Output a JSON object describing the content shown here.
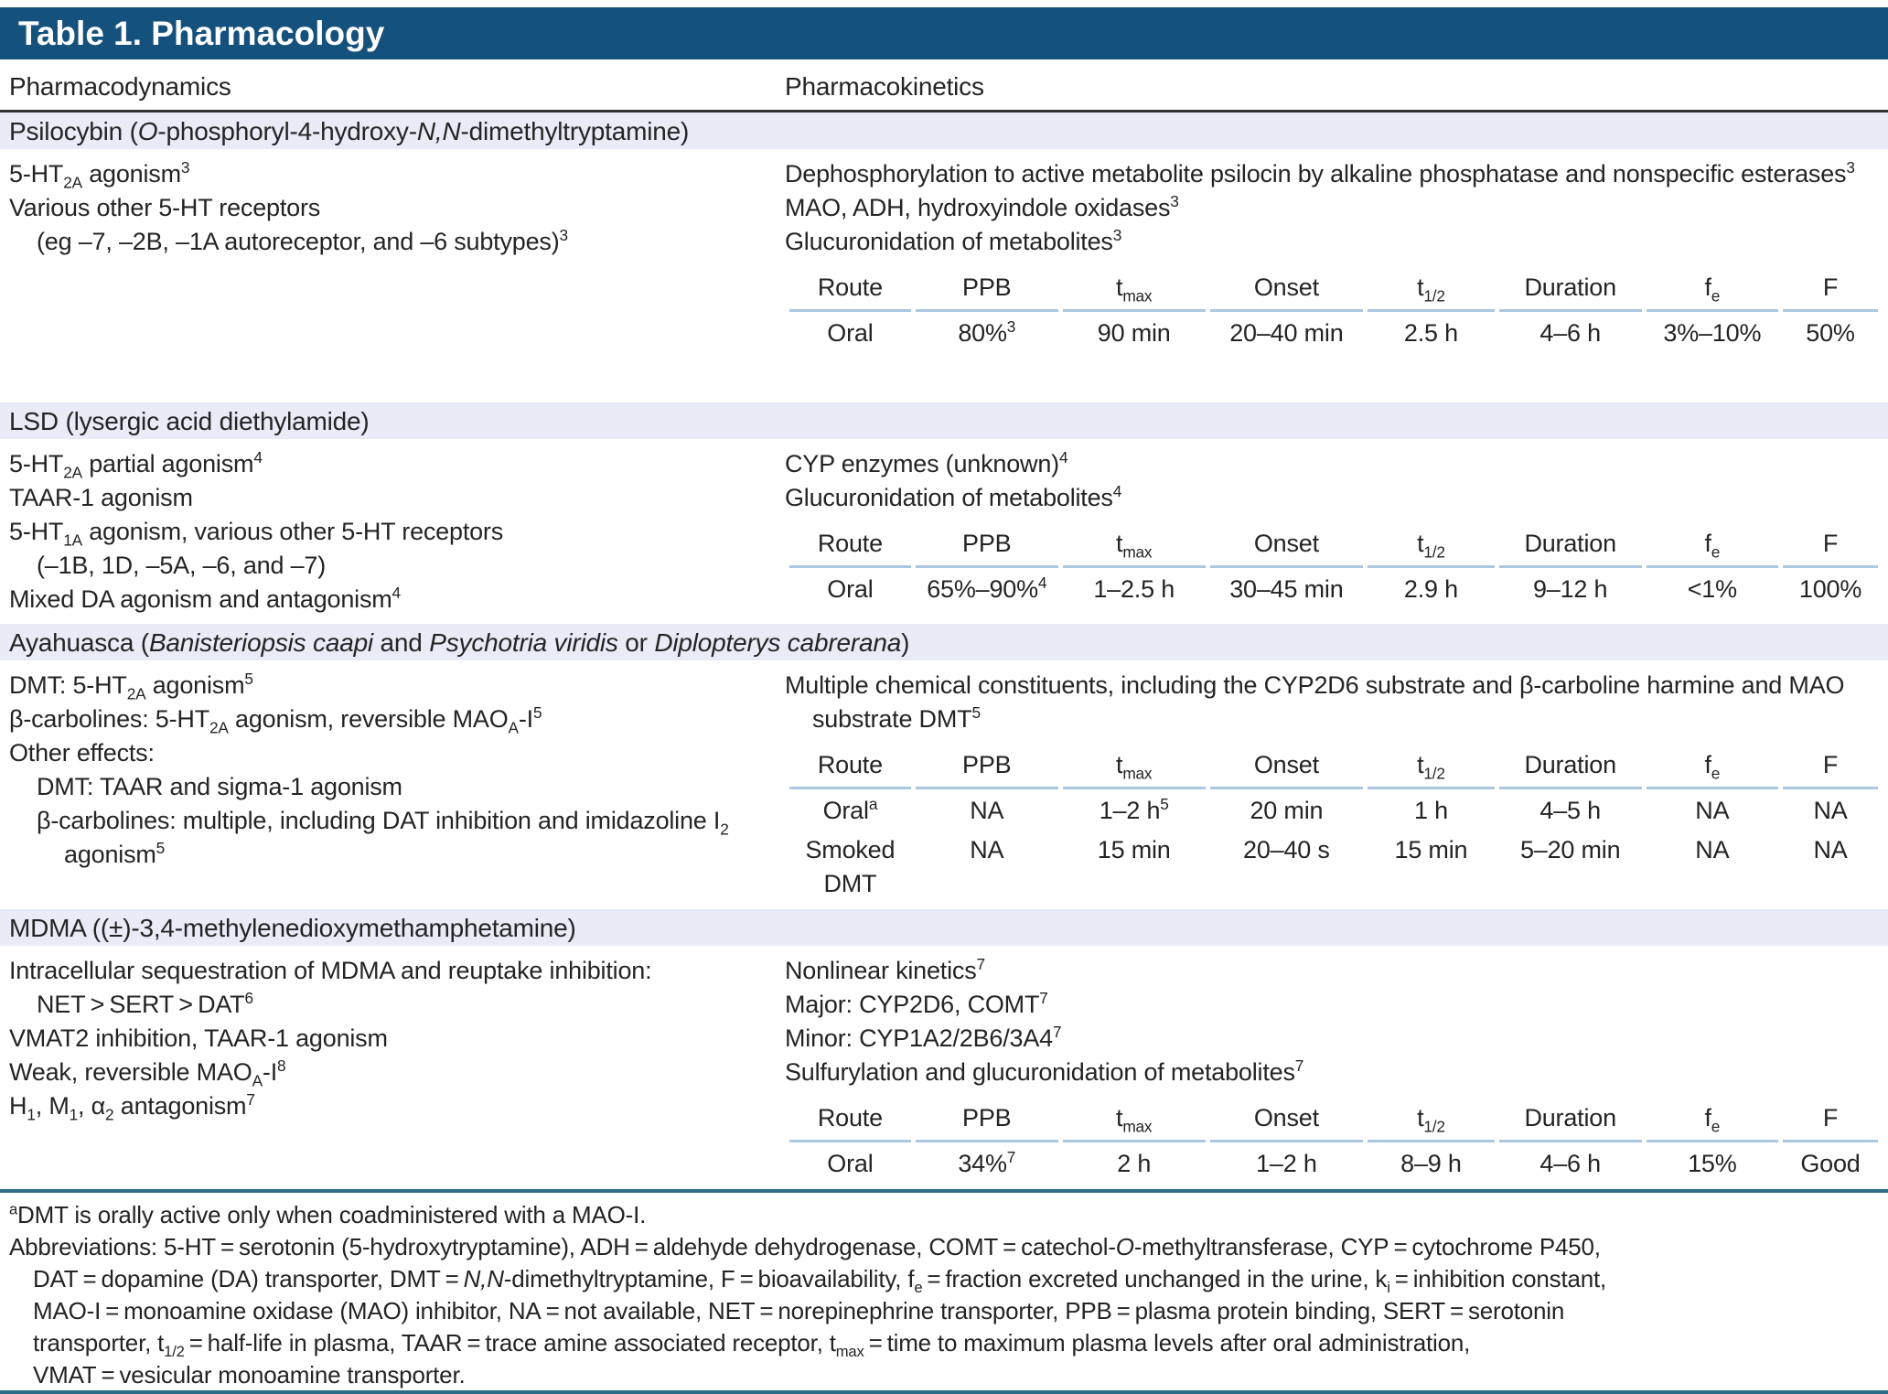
{
  "title": "Table 1. Pharmacology",
  "columns": {
    "left": "Pharmacodynamics",
    "right": "Pharmacokinetics"
  },
  "colors": {
    "header_bg": "#15517d",
    "band_bg": "#e9ecf7",
    "teal_rule": "#2c6c88",
    "dark_rule": "#333333",
    "table_rule": "#abc8e2",
    "text": "#242424"
  },
  "kinetics_headers": [
    "Route",
    "PPB",
    "t_{max}",
    "Onset",
    "t_{1/2}",
    "Duration",
    "f_{e}",
    "F"
  ],
  "sections": [
    {
      "drug": "psilocybin",
      "band": "Psilocybin (*{O}*-phosphoryl-4-hydroxy-*{N,N}*-dimethyltryptamine)",
      "dynamics": [
        {
          "t": "5-HT_{2A} agonism^{3}",
          "ind": 0
        },
        {
          "t": "Various other 5-HT receptors",
          "ind": 0
        },
        {
          "t": "(eg –7, –2B, –1A autoreceptor, and –6 subtypes)^{3}",
          "ind": 1
        }
      ],
      "kinetics_notes": [
        {
          "t": "Dephosphorylation to active metabolite psilocin by alkaline phosphatase and nonspecific esterases^{3}",
          "ind": 0
        },
        {
          "t": "MAO, ADH, hydroxyindole oxidases^{3}",
          "ind": 0
        },
        {
          "t": "Glucuronidation of metabolites^{3}",
          "ind": 0
        }
      ],
      "kinetics_rows": [
        [
          "Oral",
          "80%^{3}",
          "90 min",
          "20–40 min",
          "2.5 h",
          "4–6 h",
          "3%–10%",
          "50%"
        ]
      ]
    },
    {
      "drug": "lsd",
      "band": "LSD (lysergic acid diethylamide)",
      "dynamics": [
        {
          "t": "5-HT_{2A} partial agonism^{4}",
          "ind": 0
        },
        {
          "t": "TAAR-1 agonism",
          "ind": 0
        },
        {
          "t": "5-HT_{1A} agonism, various other 5-HT receptors",
          "ind": 0
        },
        {
          "t": "(–1B, 1D, –5A, –6, and –7)",
          "ind": 1
        },
        {
          "t": "Mixed DA agonism and antagonism^{4}",
          "ind": 0
        }
      ],
      "kinetics_notes": [
        {
          "t": "CYP enzymes (unknown)^{4}",
          "ind": 0
        },
        {
          "t": "Glucuronidation of metabolites^{4}",
          "ind": 0
        }
      ],
      "kinetics_rows": [
        [
          "Oral",
          "65%–90%^{4}",
          "1–2.5 h",
          "30–45 min",
          "2.9 h",
          "9–12 h",
          "<1%",
          "100%"
        ]
      ]
    },
    {
      "drug": "ayahuasca",
      "band": "Ayahuasca (*{Banisteriopsis caapi}* and *{Psychotria viridis}* or *{Diplopterys cabrerana}*)",
      "dynamics": [
        {
          "t": "DMT: 5-HT_{2A} agonism^{5}",
          "ind": 0
        },
        {
          "t": "β-carbolines: 5-HT_{2A} agonism, reversible MAO_{A}-I^{5}",
          "ind": 0
        },
        {
          "t": "Other effects:",
          "ind": 0
        },
        {
          "t": "DMT: TAAR and sigma-1 agonism",
          "ind": 1
        },
        {
          "t": "β-carbolines: multiple, including DAT inhibition and imidazoline I_{2} agonism^{5}",
          "ind": 1
        }
      ],
      "kinetics_notes": [
        {
          "t": "Multiple chemical constituents, including the CYP2D6 substrate and β-carboline harmine and MAO substrate DMT^{5}",
          "ind": 0
        }
      ],
      "kinetics_rows": [
        [
          "Oral^{a}",
          "NA",
          "1–2 h^{5}",
          "20 min",
          "1 h",
          "4–5 h",
          "NA",
          "NA"
        ],
        [
          "Smoked DMT",
          "NA",
          "15 min",
          "20–40 s",
          "15 min",
          "5–20 min",
          "NA",
          "NA"
        ]
      ]
    },
    {
      "drug": "mdma",
      "band": "MDMA ((±)-3,4-methylenedioxymethamphetamine)",
      "dynamics": [
        {
          "t": "Intracellular sequestration of MDMA and reuptake inhibition:",
          "ind": 0
        },
        {
          "t": "NET > SERT > DAT^{6}",
          "ind": 1
        },
        {
          "t": "VMAT2 inhibition, TAAR-1 agonism",
          "ind": 0
        },
        {
          "t": "Weak, reversible MAO_{A}-I^{8}",
          "ind": 0
        },
        {
          "t": "H_{1}, M_{1}, α_{2} antagonism^{7}",
          "ind": 0
        }
      ],
      "kinetics_notes": [
        {
          "t": "Nonlinear kinetics^{7}",
          "ind": 0
        },
        {
          "t": "Major: CYP2D6, COMT^{7}",
          "ind": 0
        },
        {
          "t": "Minor: CYP1A2/2B6/3A4^{7}",
          "ind": 0
        },
        {
          "t": "Sulfurylation and glucuronidation of metabolites^{7}",
          "ind": 0
        }
      ],
      "kinetics_rows": [
        [
          "Oral",
          "34%^{7}",
          "2 h",
          "1–2 h",
          "8–9 h",
          "4–6 h",
          "15%",
          "Good"
        ]
      ]
    }
  ],
  "footnotes": [
    {
      "t": "^{a}DMT is orally active only when coadministered with a MAO-I.",
      "ind": 0
    },
    {
      "t": "Abbreviations: 5-HT = serotonin (5-hydroxytryptamine), ADH = aldehyde dehydrogenase, COMT = catechol-*{O}*-methyltransferase, CYP = cytochrome P450,",
      "ind": 0
    },
    {
      "t": "DAT = dopamine (DA) transporter, DMT = *{N,N}*-dimethyltryptamine, F = bioavailability, f_{e} = fraction excreted unchanged in the urine, k_{i} = inhibition constant,",
      "ind": 1
    },
    {
      "t": "MAO-I = monoamine oxidase (MAO) inhibitor, NA = not available, NET = norepinephrine transporter, PPB = plasma protein binding, SERT = serotonin",
      "ind": 1
    },
    {
      "t": "transporter, t_{1/2} = half-life in plasma, TAAR = trace amine associated receptor, t_{max} = time to maximum plasma levels after oral administration,",
      "ind": 1
    },
    {
      "t": "VMAT = vesicular monoamine transporter.",
      "ind": 1
    }
  ]
}
